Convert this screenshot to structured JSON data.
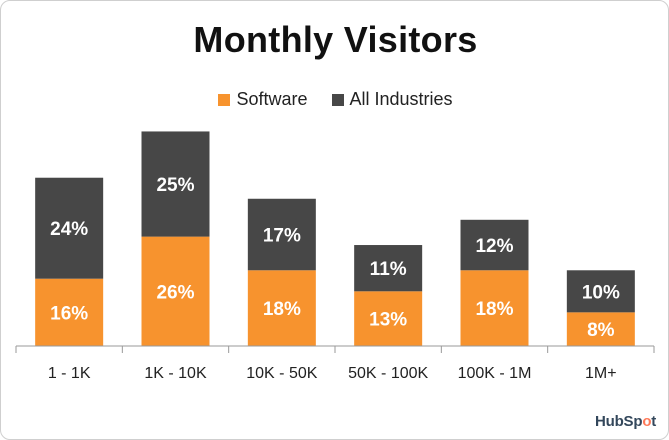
{
  "chart_data": {
    "type": "bar",
    "stacked": true,
    "title": "Monthly Visitors",
    "categories": [
      "1 - 1K",
      "1K - 10K",
      "10K - 50K",
      "50K - 100K",
      "100K - 1M",
      "1M+"
    ],
    "series": [
      {
        "name": "Software",
        "values": [
          16,
          26,
          18,
          13,
          18,
          8
        ],
        "color": "#f7932e"
      },
      {
        "name": "All Industries",
        "values": [
          24,
          25,
          17,
          11,
          12,
          10
        ],
        "color": "#474747"
      }
    ],
    "value_suffix": "%",
    "ylim": [
      0,
      58
    ],
    "legend_position": "top-center",
    "grid": false
  },
  "brand": {
    "text_pre": "HubSp",
    "text_o": "o",
    "text_post": "t",
    "color": "#33475b",
    "accent": "#ff7a59"
  }
}
